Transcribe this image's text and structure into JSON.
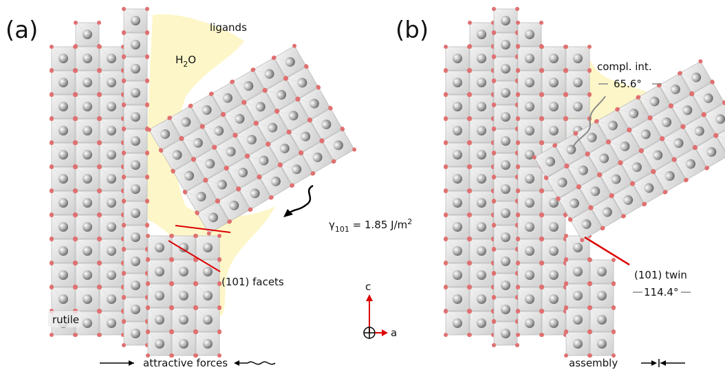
{
  "panel_a": {
    "label": "(a)",
    "ligands": "ligands",
    "water": {
      "h": "H",
      "sub": "2",
      "o": "O"
    },
    "energy": {
      "symbol": "γ",
      "sub": "101",
      "text": " = 1.85 J/m",
      "sup": "2"
    },
    "facets": "(101) facets",
    "rutile": "rutile",
    "forces": "attractive forces"
  },
  "axes": {
    "c": "c",
    "a": "a"
  },
  "panel_b": {
    "label": "(b)",
    "interface": "compl. int.",
    "interface_angle": "65.6°",
    "twin": "(101) twin",
    "twin_angle": "114.4°",
    "assembly": "assembly"
  }
}
